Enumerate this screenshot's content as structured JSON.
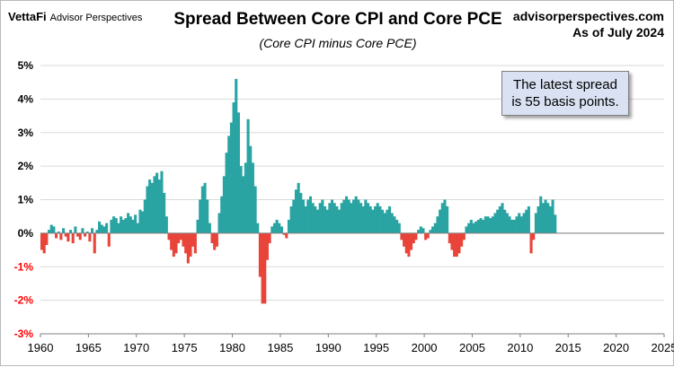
{
  "header": {
    "logo_brand": "VettaFi",
    "logo_sub": "Advisor Perspectives",
    "title": "Spread Between Core CPI and Core PCE",
    "subtitle": "(Core CPI minus Core PCE)",
    "site": "advisorperspectives.com",
    "as_of": "As of July 2024"
  },
  "callout": {
    "line1": "The latest spread",
    "line2": "is 55 basis points."
  },
  "colors": {
    "positive": "#2aa3a3",
    "negative": "#e8443a",
    "grid": "#d9d9d9",
    "negative_label": "#ff0000"
  },
  "chart_data": {
    "type": "bar",
    "title": "Spread Between Core CPI and Core PCE",
    "subtitle": "(Core CPI minus Core PCE)",
    "xlabel": "",
    "ylabel": "",
    "xlim": [
      1960,
      2025
    ],
    "ylim": [
      -3,
      5
    ],
    "x_ticks": [
      1960,
      1965,
      1970,
      1975,
      1980,
      1985,
      1990,
      1995,
      2000,
      2005,
      2010,
      2015,
      2020,
      2025
    ],
    "y_ticks": [
      {
        "value": 5,
        "label": "5%"
      },
      {
        "value": 4,
        "label": "4%"
      },
      {
        "value": 3,
        "label": "3%"
      },
      {
        "value": 2,
        "label": "2%"
      },
      {
        "value": 1,
        "label": "1%"
      },
      {
        "value": 0,
        "label": "0%"
      },
      {
        "value": -1,
        "label": "-1%"
      },
      {
        "value": -2,
        "label": "-2%"
      },
      {
        "value": -3,
        "label": "-3%"
      }
    ],
    "grid": true,
    "series_x_step_years": 0.25,
    "series": [
      {
        "name": "",
        "x_start": 1960.0,
        "values": [
          -0.5,
          -0.6,
          -0.35,
          0.1,
          0.25,
          0.2,
          -0.15,
          0.05,
          -0.2,
          0.15,
          -0.1,
          -0.25,
          0.1,
          -0.3,
          0.2,
          -0.1,
          -0.2,
          0.15,
          -0.1,
          0.05,
          -0.25,
          0.15,
          -0.6,
          0.1,
          0.35,
          0.25,
          0.2,
          0.3,
          -0.4,
          0.4,
          0.5,
          0.45,
          0.3,
          0.5,
          0.4,
          0.45,
          0.6,
          0.5,
          0.4,
          0.55,
          0.3,
          0.7,
          0.65,
          1.0,
          1.4,
          1.6,
          1.5,
          1.7,
          1.8,
          1.6,
          1.85,
          1.2,
          0.5,
          -0.2,
          -0.5,
          -0.7,
          -0.6,
          -0.3,
          -0.2,
          -0.4,
          -0.6,
          -0.9,
          -0.7,
          -0.4,
          -0.6,
          0.4,
          1.0,
          1.4,
          1.5,
          1.0,
          0.3,
          -0.3,
          -0.5,
          -0.4,
          0.6,
          1.1,
          1.7,
          2.4,
          2.9,
          3.3,
          3.9,
          4.6,
          3.6,
          2.0,
          1.7,
          2.1,
          3.4,
          2.6,
          2.1,
          1.4,
          0.3,
          -1.3,
          -2.1,
          -2.1,
          -0.8,
          -0.3,
          0.2,
          0.3,
          0.4,
          0.3,
          0.2,
          -0.05,
          -0.15,
          0.4,
          0.8,
          1.0,
          1.3,
          1.5,
          1.2,
          1.0,
          0.8,
          1.0,
          1.1,
          0.9,
          0.8,
          0.7,
          0.9,
          1.0,
          0.8,
          0.7,
          0.9,
          1.0,
          0.9,
          0.8,
          0.7,
          0.9,
          1.0,
          1.1,
          1.0,
          0.9,
          1.0,
          1.1,
          1.0,
          0.9,
          0.8,
          1.0,
          0.9,
          0.8,
          0.7,
          0.8,
          0.9,
          0.8,
          0.7,
          0.6,
          0.7,
          0.8,
          0.6,
          0.5,
          0.4,
          0.3,
          -0.2,
          -0.4,
          -0.6,
          -0.7,
          -0.5,
          -0.3,
          -0.2,
          0.1,
          0.2,
          0.15,
          -0.2,
          -0.15,
          0.1,
          0.2,
          0.3,
          0.5,
          0.7,
          0.9,
          1.0,
          0.8,
          -0.3,
          -0.5,
          -0.7,
          -0.7,
          -0.6,
          -0.4,
          -0.2,
          0.2,
          0.3,
          0.4,
          0.3,
          0.35,
          0.4,
          0.45,
          0.4,
          0.5,
          0.5,
          0.45,
          0.5,
          0.6,
          0.7,
          0.8,
          0.9,
          0.7,
          0.6,
          0.5,
          0.4,
          0.4,
          0.5,
          0.6,
          0.5,
          0.6,
          0.7,
          0.8,
          -0.6,
          -0.2,
          0.6,
          0.8,
          1.1,
          0.9,
          1.0,
          0.9,
          0.8,
          1.0,
          0.55
        ]
      }
    ]
  }
}
